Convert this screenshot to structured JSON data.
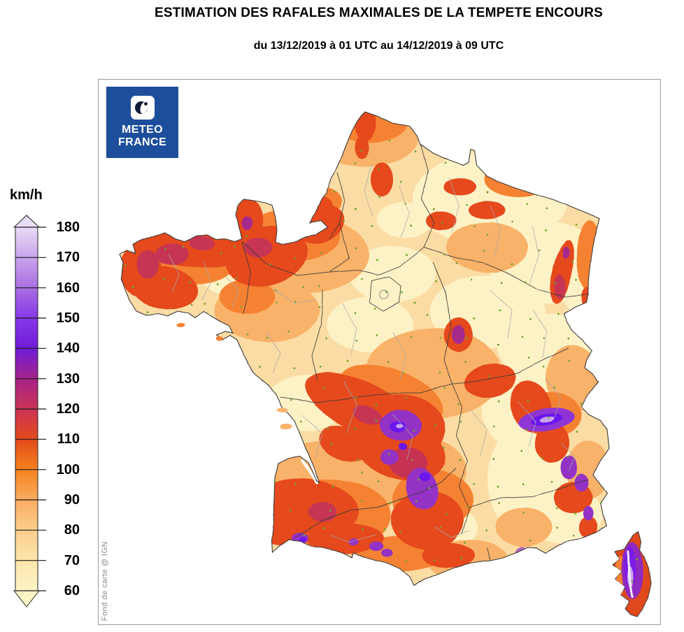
{
  "header": {
    "title": "ESTIMATION DES RAFALES MAXIMALES DE LA TEMPETE ENCOURS",
    "subtitle": "du 13/12/2019 à 01 UTC au 14/12/2019 à 09 UTC"
  },
  "logo": {
    "line1": "METEO",
    "line2": "FRANCE",
    "background": "#1d4e9c"
  },
  "legend": {
    "unit": "km/h",
    "ticks": [
      180,
      170,
      160,
      150,
      140,
      130,
      120,
      110,
      100,
      90,
      80,
      70,
      60
    ],
    "stop_colors_bottom_to_top": [
      "#fdf4c6",
      "#fce5ac",
      "#fbce8e",
      "#f9ac60",
      "#f5821f",
      "#e24a1a",
      "#cb3356",
      "#a62389",
      "#6f1bd8",
      "#8739e8",
      "#a96fe0",
      "#c9a4ec",
      "#e8dcf6"
    ]
  },
  "map": {
    "attribution": "Fond de carte @ IGN",
    "palette": {
      "sea": "#ffffff",
      "base_60_90": "#fbdca4",
      "cream_60_70": "#fdf2c6",
      "light_orange_90": "#f9b269",
      "orange_100": "#f58233",
      "red_110": "#e5491d",
      "crimson_120": "#c2315b",
      "purple_130_140": "#9333c4",
      "violet_150": "#6a15ed",
      "lavender_170": "#c9a4ec",
      "region_border": "#3a3a3a",
      "department_border": "#a9a9a9",
      "town_dot": "#6fa52f"
    }
  }
}
